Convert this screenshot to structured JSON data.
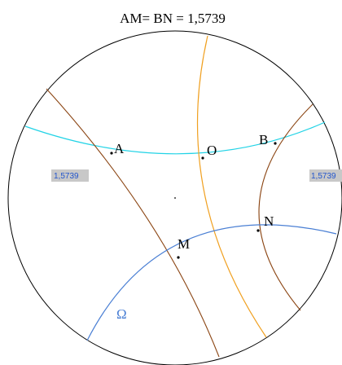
{
  "title": "AM= BN = 1,5739",
  "points": {
    "A": "A",
    "O": "O",
    "B": "B",
    "M": "M",
    "N": "N"
  },
  "omega_label": "Ω",
  "measure_left": "1,5739",
  "measure_right": "1,5739",
  "colors": {
    "disk": "#000000",
    "cyan_curve": "#22d3e6",
    "orange_curve": "#f0a020",
    "brown_curve": "#8b4513",
    "blue_curve": "#4a7fd4",
    "measure_box": "#c8c8c8",
    "measure_text": "#2255cc"
  }
}
